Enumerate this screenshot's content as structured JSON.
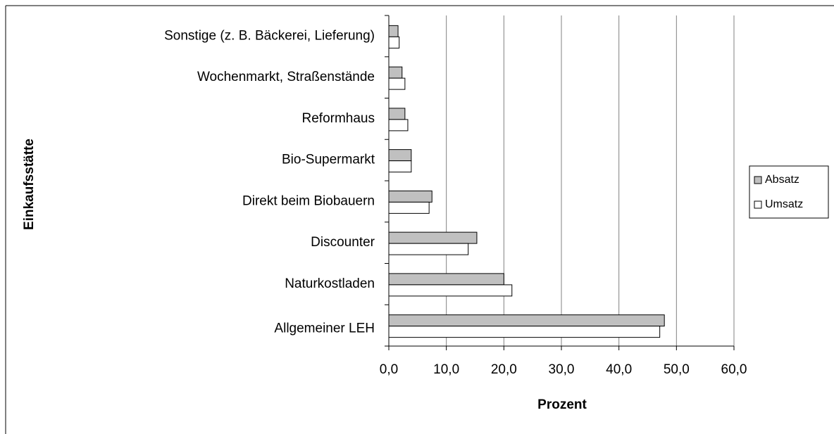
{
  "chart_data": {
    "type": "bar",
    "orientation": "horizontal",
    "categories": [
      "Sonstige (z. B. Bäckerei, Lieferung)",
      "Wochenmarkt, Straßenstände",
      "Reformhaus",
      "Bio-Supermarkt",
      "Direkt beim Biobauern",
      "Discounter",
      "Naturkostladen",
      "Allgemeiner LEH"
    ],
    "series": [
      {
        "name": "Absatz",
        "color": "#c0c0c0",
        "values": [
          1.6,
          2.3,
          2.8,
          3.9,
          7.5,
          15.3,
          20.0,
          47.9
        ]
      },
      {
        "name": "Umsatz",
        "color": "#ffffff",
        "values": [
          1.8,
          2.8,
          3.3,
          3.9,
          7.0,
          13.8,
          21.4,
          47.1
        ]
      }
    ],
    "xlim": [
      0,
      60
    ],
    "xticks": [
      {
        "value": 0,
        "label": "0,0"
      },
      {
        "value": 10,
        "label": "10,0"
      },
      {
        "value": 20,
        "label": "20,0"
      },
      {
        "value": 30,
        "label": "30,0"
      },
      {
        "value": 40,
        "label": "40,0"
      },
      {
        "value": 50,
        "label": "50,0"
      },
      {
        "value": 60,
        "label": "60,0"
      }
    ],
    "x_label": "Prozent",
    "y_label": "Einkaufsstätte",
    "grid": true,
    "legend": "right"
  }
}
